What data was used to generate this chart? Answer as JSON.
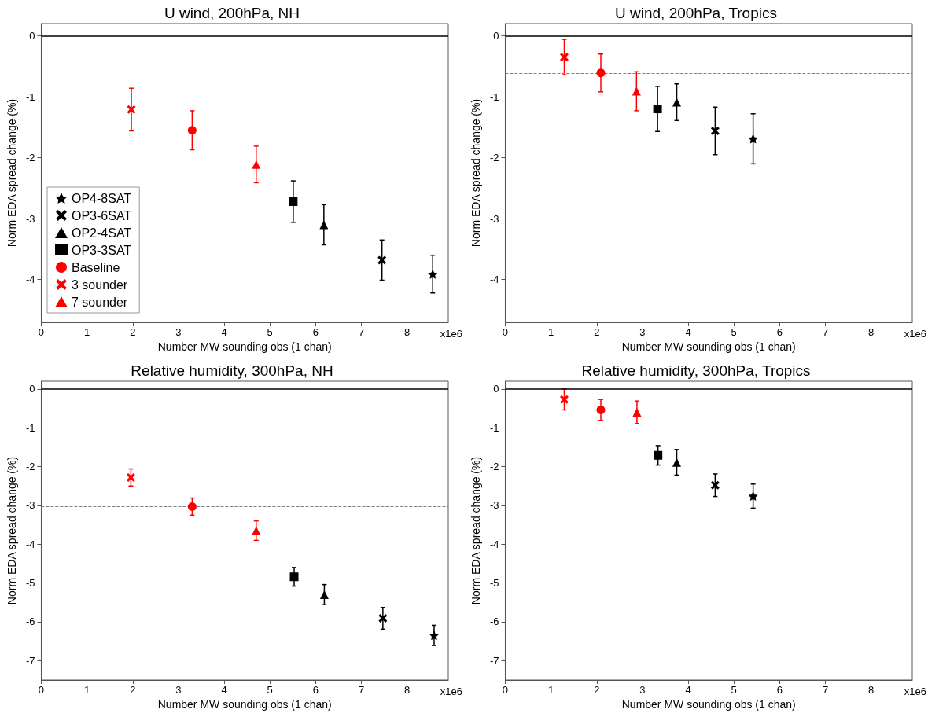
{
  "chart_data": [
    {
      "type": "scatter",
      "title": "U wind, 200hPa, NH",
      "xlabel": "Number MW sounding obs (1 chan)",
      "ylabel": "Norm EDA spread change (%)",
      "annotations": [
        "x1e6"
      ],
      "xlim": [
        0,
        8.9
      ],
      "xticks": [
        0,
        1,
        2,
        3,
        4,
        5,
        6,
        7,
        8
      ],
      "ylim": [
        -4.7,
        0.2
      ],
      "yticks": [
        -4,
        -3,
        -2,
        -1,
        0
      ],
      "grid": false,
      "legend": "bottom left",
      "ref_lines": [
        {
          "axis": "y",
          "value": 0,
          "color": "#000000",
          "line_style": "solid"
        },
        {
          "axis": "y",
          "value": -1.55,
          "color": "#808080",
          "line_style": "dashed"
        }
      ],
      "series": [
        {
          "name": "OP4-8SAT",
          "color": "#000000",
          "marker": "star",
          "x": [
            8.56
          ],
          "values": [
            -3.91
          ],
          "errors": [
            0.31
          ]
        },
        {
          "name": "OP3-6SAT",
          "color": "#000000",
          "marker": "cross",
          "x": [
            7.45
          ],
          "values": [
            -3.68
          ],
          "errors": [
            0.33
          ]
        },
        {
          "name": "OP2-4SAT",
          "color": "#000000",
          "marker": "triangle",
          "x": [
            6.18
          ],
          "values": [
            -3.1
          ],
          "errors": [
            0.33
          ]
        },
        {
          "name": "OP3-3SAT",
          "color": "#000000",
          "marker": "square",
          "x": [
            5.51
          ],
          "values": [
            -2.72
          ],
          "errors": [
            0.34
          ]
        },
        {
          "name": "Baseline",
          "color": "#ff0000",
          "marker": "circle",
          "x": [
            3.3
          ],
          "values": [
            -1.55
          ],
          "errors": [
            0.32
          ]
        },
        {
          "name": "3 sounder",
          "color": "#ff0000",
          "marker": "cross",
          "x": [
            1.97
          ],
          "values": [
            -1.21
          ],
          "errors": [
            0.35
          ]
        },
        {
          "name": "7 sounder",
          "color": "#ff0000",
          "marker": "triangle",
          "x": [
            4.7
          ],
          "values": [
            -2.11
          ],
          "errors": [
            0.3
          ]
        }
      ]
    },
    {
      "type": "scatter",
      "title": "U wind, 200hPa, Tropics",
      "xlabel": "Number MW sounding obs (1 chan)",
      "ylabel": "Norm EDA spread change (%)",
      "annotations": [
        "x1e6"
      ],
      "xlim": [
        0,
        8.9
      ],
      "xticks": [
        0,
        1,
        2,
        3,
        4,
        5,
        6,
        7,
        8
      ],
      "ylim": [
        -4.7,
        0.2
      ],
      "yticks": [
        -4,
        -3,
        -2,
        -1,
        0
      ],
      "grid": false,
      "legend": false,
      "ref_lines": [
        {
          "axis": "y",
          "value": 0,
          "color": "#000000",
          "line_style": "solid"
        },
        {
          "axis": "y",
          "value": -0.61,
          "color": "#808080",
          "line_style": "dashed"
        }
      ],
      "series": [
        {
          "color": "#000000",
          "marker": "star",
          "x": [
            5.42
          ],
          "values": [
            -1.69
          ],
          "errors": [
            0.41
          ]
        },
        {
          "color": "#000000",
          "marker": "cross",
          "x": [
            4.59
          ],
          "values": [
            -1.56
          ],
          "errors": [
            0.39
          ]
        },
        {
          "color": "#000000",
          "marker": "triangle",
          "x": [
            3.75
          ],
          "values": [
            -1.09
          ],
          "errors": [
            0.3
          ]
        },
        {
          "color": "#000000",
          "marker": "square",
          "x": [
            3.33
          ],
          "values": [
            -1.2
          ],
          "errors": [
            0.37
          ]
        },
        {
          "color": "#ff0000",
          "marker": "circle",
          "x": [
            2.09
          ],
          "values": [
            -0.61
          ],
          "errors": [
            0.31
          ]
        },
        {
          "color": "#ff0000",
          "marker": "cross",
          "x": [
            1.29
          ],
          "values": [
            -0.35
          ],
          "errors": [
            0.29
          ]
        },
        {
          "color": "#ff0000",
          "marker": "triangle",
          "x": [
            2.87
          ],
          "values": [
            -0.91
          ],
          "errors": [
            0.32
          ]
        }
      ]
    },
    {
      "type": "scatter",
      "title": "Relative humidity, 300hPa, NH",
      "xlabel": "Number MW sounding obs (1 chan)",
      "ylabel": "Norm EDA spread change (%)",
      "annotations": [
        "x1e6"
      ],
      "xlim": [
        0,
        8.9
      ],
      "xticks": [
        0,
        1,
        2,
        3,
        4,
        5,
        6,
        7,
        8
      ],
      "ylim": [
        -7.5,
        0.2
      ],
      "yticks": [
        -7,
        -6,
        -5,
        -4,
        -3,
        -2,
        -1,
        0
      ],
      "grid": false,
      "legend": false,
      "ref_lines": [
        {
          "axis": "y",
          "value": 0,
          "color": "#000000",
          "line_style": "solid"
        },
        {
          "axis": "y",
          "value": -3.03,
          "color": "#808080",
          "line_style": "dashed"
        }
      ],
      "series": [
        {
          "color": "#000000",
          "marker": "star",
          "x": [
            8.59
          ],
          "values": [
            -6.35
          ],
          "errors": [
            0.26
          ]
        },
        {
          "color": "#000000",
          "marker": "cross",
          "x": [
            7.47
          ],
          "values": [
            -5.91
          ],
          "errors": [
            0.28
          ]
        },
        {
          "color": "#000000",
          "marker": "triangle",
          "x": [
            6.19
          ],
          "values": [
            -5.3
          ],
          "errors": [
            0.26
          ]
        },
        {
          "color": "#000000",
          "marker": "square",
          "x": [
            5.53
          ],
          "values": [
            -4.84
          ],
          "errors": [
            0.24
          ]
        },
        {
          "color": "#ff0000",
          "marker": "circle",
          "x": [
            3.3
          ],
          "values": [
            -3.03
          ],
          "errors": [
            0.22
          ]
        },
        {
          "color": "#ff0000",
          "marker": "cross",
          "x": [
            1.96
          ],
          "values": [
            -2.28
          ],
          "errors": [
            0.22
          ]
        },
        {
          "color": "#ff0000",
          "marker": "triangle",
          "x": [
            4.7
          ],
          "values": [
            -3.65
          ],
          "errors": [
            0.25
          ]
        }
      ]
    },
    {
      "type": "scatter",
      "title": "Relative humidity, 300hPa, Tropics",
      "xlabel": "Number MW sounding obs (1 chan)",
      "ylabel": "Norm EDA spread change (%)",
      "annotations": [
        "x1e6"
      ],
      "xlim": [
        0,
        8.9
      ],
      "xticks": [
        0,
        1,
        2,
        3,
        4,
        5,
        6,
        7,
        8
      ],
      "ylim": [
        -7.5,
        0.2
      ],
      "yticks": [
        -7,
        -6,
        -5,
        -4,
        -3,
        -2,
        -1,
        0
      ],
      "grid": false,
      "legend": false,
      "ref_lines": [
        {
          "axis": "y",
          "value": 0,
          "color": "#000000",
          "line_style": "solid"
        },
        {
          "axis": "y",
          "value": -0.54,
          "color": "#808080",
          "line_style": "dashed"
        }
      ],
      "series": [
        {
          "color": "#000000",
          "marker": "star",
          "x": [
            5.42
          ],
          "values": [
            -2.76
          ],
          "errors": [
            0.31
          ]
        },
        {
          "color": "#000000",
          "marker": "cross",
          "x": [
            4.59
          ],
          "values": [
            -2.48
          ],
          "errors": [
            0.29
          ]
        },
        {
          "color": "#000000",
          "marker": "triangle",
          "x": [
            3.75
          ],
          "values": [
            -1.89
          ],
          "errors": [
            0.33
          ]
        },
        {
          "color": "#000000",
          "marker": "square",
          "x": [
            3.34
          ],
          "values": [
            -1.71
          ],
          "errors": [
            0.25
          ]
        },
        {
          "color": "#ff0000",
          "marker": "circle",
          "x": [
            2.09
          ],
          "values": [
            -0.54
          ],
          "errors": [
            0.27
          ]
        },
        {
          "color": "#ff0000",
          "marker": "cross",
          "x": [
            1.29
          ],
          "values": [
            -0.27
          ],
          "errors": [
            0.27
          ]
        },
        {
          "color": "#ff0000",
          "marker": "triangle",
          "x": [
            2.88
          ],
          "values": [
            -0.6
          ],
          "errors": [
            0.29
          ]
        }
      ]
    }
  ]
}
